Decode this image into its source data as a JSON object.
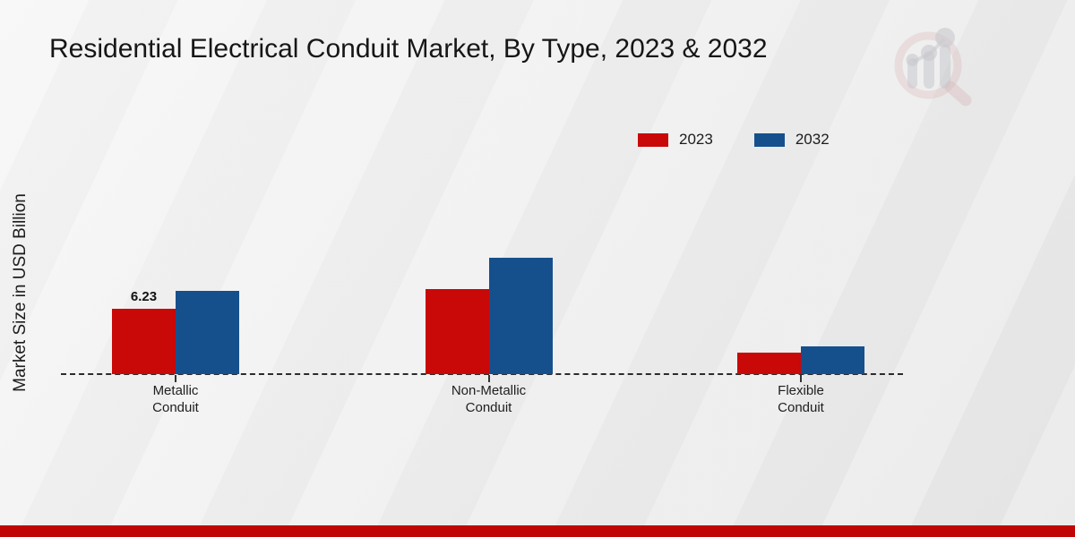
{
  "title": "Residential Electrical Conduit Market, By Type, 2023 & 2032",
  "ylabel": "Market Size in USD Billion",
  "colors": {
    "series_2023": "#c90808",
    "series_2032": "#15508d",
    "footer_bar": "#c00505",
    "axis_line": "#2b2b2b",
    "title_text": "#161616"
  },
  "legend": {
    "position": "top-right",
    "items": [
      {
        "label": "2023",
        "color": "#c90808"
      },
      {
        "label": "2032",
        "color": "#15508d"
      }
    ]
  },
  "watermark_icon": "market-research-future-logo",
  "chart_data": {
    "type": "bar",
    "categories": [
      "Metallic Conduit",
      "Non-Metallic Conduit",
      "Flexible Conduit"
    ],
    "series": [
      {
        "name": "2023",
        "color": "#c90808",
        "values": [
          6.23,
          8.11,
          2.05
        ]
      },
      {
        "name": "2032",
        "color": "#15508d",
        "values": [
          7.94,
          11.09,
          2.65
        ]
      }
    ],
    "bar_labels": [
      {
        "series_index": 0,
        "category_index": 0,
        "text": "6.23"
      }
    ],
    "title": "Residential Electrical Conduit Market, By Type, 2023 & 2032",
    "xlabel": "",
    "ylabel": "Market Size in USD Billion",
    "ylim": [
      0,
      12.5
    ],
    "grid": false,
    "value_axis_ticks_visible": false,
    "baseline_style": "dashed"
  }
}
